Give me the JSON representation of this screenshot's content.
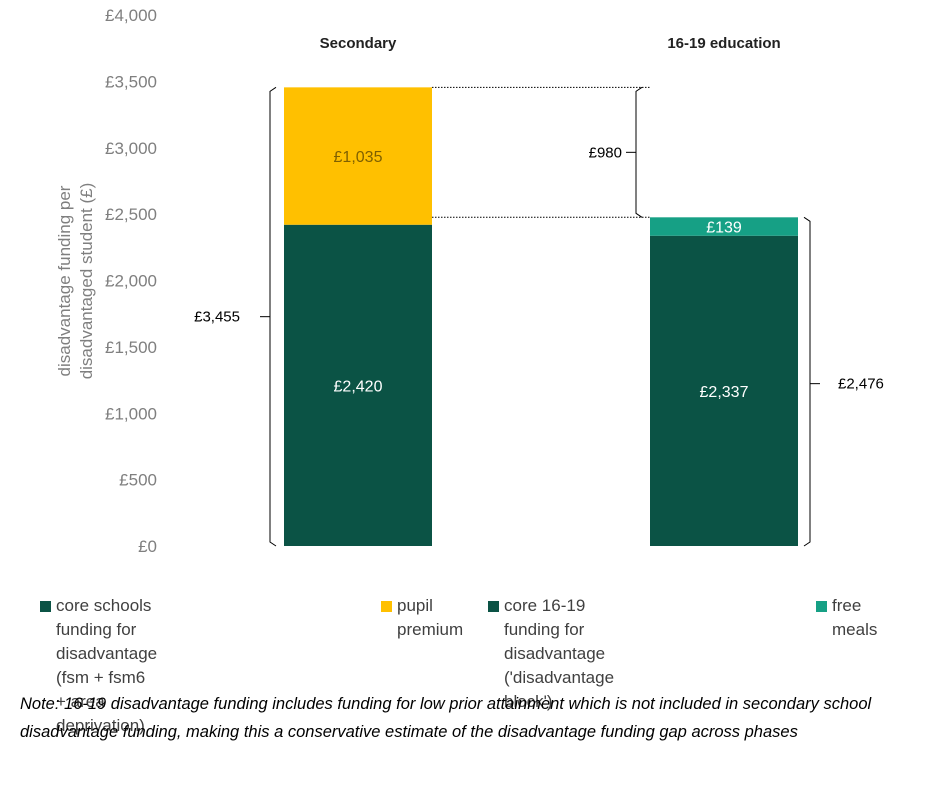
{
  "chart_data": {
    "type": "bar",
    "stacked": true,
    "categories": [
      "Secondary",
      "16-19 education"
    ],
    "ylabel_lines": [
      "disadvantage funding per",
      "disadvantaged student (£)"
    ],
    "ylim": [
      0,
      4000
    ],
    "yticks": [
      "£0",
      "£500",
      "£1,000",
      "£1,500",
      "£2,000",
      "£2,500",
      "£3,000",
      "£3,500",
      "£4,000"
    ],
    "grid": false,
    "legend_position": "bottom",
    "series": [
      {
        "name": "core schools funding for disadvantage (fsm + fsm6 + area deprivation)",
        "color": "#0b5345",
        "values": [
          2420,
          null
        ],
        "labels": [
          "£2,420",
          ""
        ]
      },
      {
        "name": "pupil premium",
        "color": "#ffc000",
        "values": [
          1035,
          null
        ],
        "labels": [
          "£1,035",
          ""
        ]
      },
      {
        "name": "core 16-19 funding for disadvantage ('disadvantage block')",
        "color": "#0b5345",
        "values": [
          null,
          2337
        ],
        "labels": [
          "",
          "£2,337"
        ]
      },
      {
        "name": "free meals",
        "color": "#16a085",
        "values": [
          null,
          139
        ],
        "labels": [
          "",
          "£139"
        ]
      }
    ],
    "annotations": {
      "secondary_total": "£3,455",
      "post16_total": "£2,476",
      "gap": "£980"
    }
  },
  "legend": [
    {
      "label": "core schools funding for disadvantage\n(fsm + fsm6 + area deprivation)",
      "color": "#0b5345"
    },
    {
      "label": "pupil\npremium",
      "color": "#ffc000"
    },
    {
      "label": "core 16-19 funding for disadvantage\n('disadvantage block')",
      "color": "#0b5345"
    },
    {
      "label": "free meals",
      "color": "#16a085"
    }
  ],
  "note": " Note: 16-19 disadvantage funding includes funding for low prior attainment which is not included in secondary school disadvantage funding, making this a conservative estimate of the disadvantage funding gap across phases"
}
